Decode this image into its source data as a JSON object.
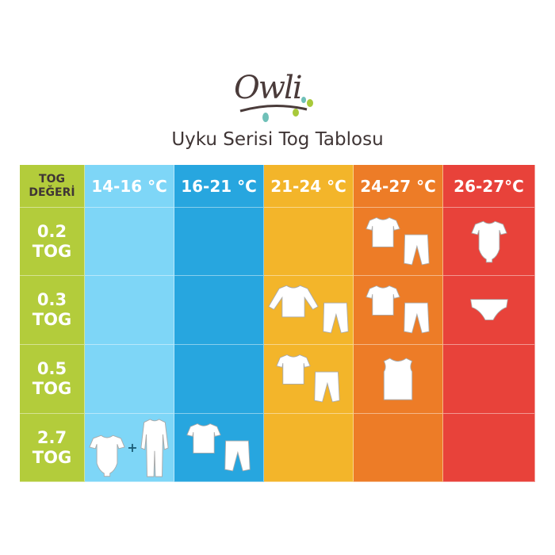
{
  "logo": {
    "text": "Owli"
  },
  "title": "Uyku Serisi Tog Tablosu",
  "colors": {
    "tog_column": "#b3cc3b",
    "14-16": "#7ed6f7",
    "16-21": "#27a6df",
    "21-24": "#f3b52a",
    "24-27": "#ed7c27",
    "26-27": "#e8423a"
  },
  "header": {
    "tog_line1": "TOG",
    "tog_line2": "DEĞERİ",
    "ranges": [
      "14-16 °C",
      "16-21 °C",
      "21-24 °C",
      "24-27 °C",
      "26-27°C"
    ]
  },
  "rows": [
    {
      "value": "0.2",
      "unit": "TOG",
      "cells": [
        [],
        [],
        [],
        [
          "t-shirt",
          "pants"
        ],
        [
          "bodysuit"
        ]
      ]
    },
    {
      "value": "0.3",
      "unit": "TOG",
      "cells": [
        [],
        [],
        [
          "long-sleeve",
          "pants"
        ],
        [
          "t-shirt",
          "pants"
        ],
        [
          "diaper-cover"
        ]
      ]
    },
    {
      "value": "0.5",
      "unit": "TOG",
      "cells": [
        [],
        [],
        [
          "t-shirt",
          "pants"
        ],
        [
          "sleeveless-vest"
        ],
        []
      ]
    },
    {
      "value": "2.7",
      "unit": "TOG",
      "cells": [
        [
          "bodysuit",
          "+",
          "sleepsuit"
        ],
        [
          "t-shirt",
          "pants"
        ],
        [],
        [],
        []
      ]
    }
  ],
  "plus_sign": "+"
}
